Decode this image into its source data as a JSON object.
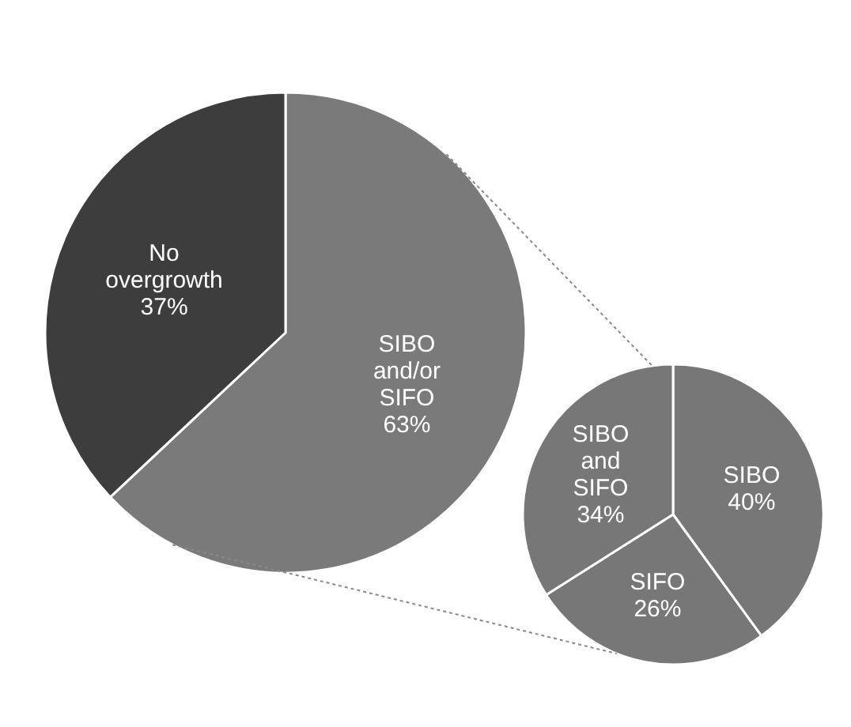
{
  "chart_data": [
    {
      "type": "pie",
      "categories": [
        "SIBO and/or SIFO",
        "No overgrowth"
      ],
      "values": [
        63,
        37
      ],
      "value_labels": [
        "63%",
        "37%"
      ],
      "colors": [
        "#7a7a7a",
        "#3d3d3d"
      ]
    },
    {
      "type": "pie",
      "categories": [
        "SIBO",
        "SIFO",
        "SIBO and SIFO"
      ],
      "values": [
        40,
        26,
        34
      ],
      "value_labels": [
        "40%",
        "26%",
        "34%"
      ],
      "colors": [
        "#777777",
        "#777777",
        "#777777"
      ]
    }
  ]
}
